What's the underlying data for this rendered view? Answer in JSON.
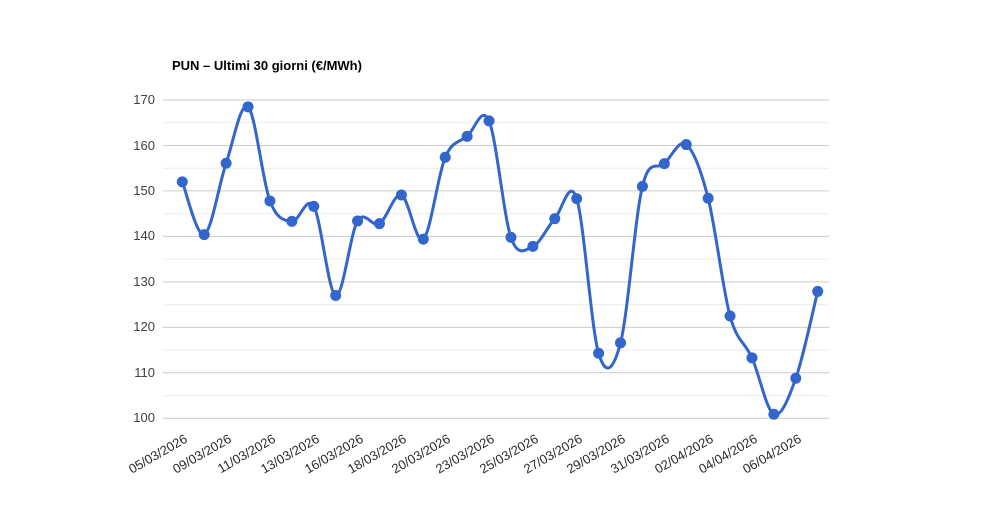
{
  "chart_data": {
    "type": "line",
    "title": "PUN – Ultimi 30 giorni (€/MWh)",
    "ylabel": "",
    "xlabel": "",
    "legend": "none",
    "grid": "on",
    "smooth_curve": true,
    "y_ticks": [
      100,
      110,
      120,
      130,
      140,
      150,
      160,
      170
    ],
    "ylim": [
      100,
      170
    ],
    "minor_gridlines_step": 5,
    "x_tick_labels": [
      "05/03/2026",
      "09/03/2026",
      "11/03/2026",
      "13/03/2026",
      "16/03/2026",
      "18/03/2026",
      "20/03/2026",
      "23/03/2026",
      "25/03/2026",
      "27/03/2026",
      "29/03/2026",
      "31/03/2026",
      "02/04/2026",
      "04/04/2026",
      "06/04/2026"
    ],
    "x_tick_every_n_points": 2,
    "values": [
      152.0,
      140.4,
      156.1,
      168.5,
      147.8,
      143.3,
      146.6,
      127.0,
      143.4,
      142.8,
      149.1,
      139.4,
      157.4,
      162.0,
      165.4,
      139.8,
      137.8,
      143.9,
      148.3,
      114.3,
      116.6,
      151.0,
      156.0,
      160.2,
      148.4,
      122.5,
      113.3,
      100.9,
      108.8,
      127.9
    ],
    "colors": {
      "line": "#3366CC",
      "point": "#3366CC",
      "major_gridline": "#cccccc",
      "minor_gridline": "#ebebeb",
      "axis_text": "#404040",
      "title_text": "#000000",
      "background": "#ffffff"
    }
  }
}
